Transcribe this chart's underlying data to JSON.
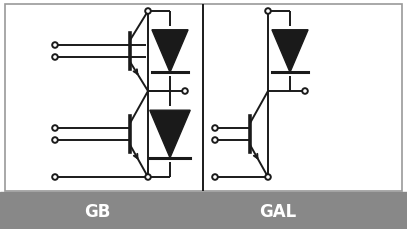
{
  "title_left": "GB",
  "title_right": "GAL",
  "footer_color": "#888888",
  "text_color": "#ffffff",
  "line_color": "#1a1a1a",
  "bg_color": "#ffffff",
  "border_color": "#999999",
  "figsize": [
    4.07,
    2.3
  ],
  "dpi": 100
}
